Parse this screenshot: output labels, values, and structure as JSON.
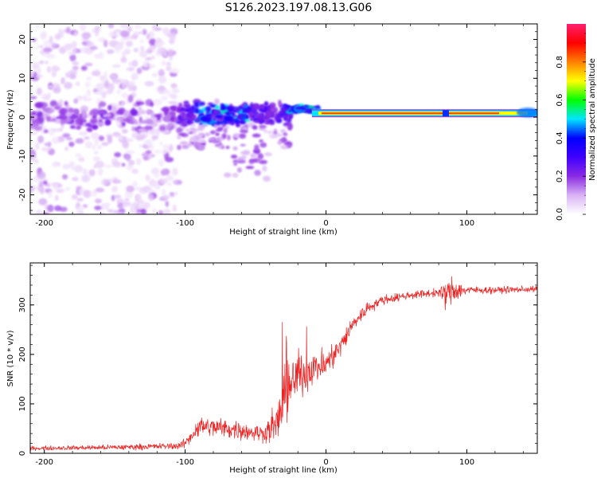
{
  "figure": {
    "title": "S126.2023.197.08.13.G06"
  },
  "chart_data": [
    {
      "type": "heatmap",
      "xlabel": "Height of straight line (km)",
      "ylabel": "Frequency (Hz)",
      "xlim": [
        -210,
        150
      ],
      "ylim": [
        -25,
        24
      ],
      "x_ticks": [
        "-200",
        "-100",
        "0",
        "100"
      ],
      "y_ticks": [
        "-20",
        "-10",
        "0",
        "10",
        "20"
      ],
      "colorbar": {
        "label": "Normalized spectral amplitude",
        "range": [
          0,
          1
        ],
        "ticks": [
          "0.0",
          "0.2",
          "0.4",
          "0.6",
          "0.8"
        ],
        "colormap": [
          "#ffffff",
          "#d9b3f5",
          "#8a2be2",
          "#3f00ff",
          "#0000ff",
          "#00e5ff",
          "#00ff00",
          "#ffff00",
          "#ff8000",
          "#ff0000",
          "#ff1f6e"
        ]
      },
      "features": {
        "scatter_noise_x_range": [
          -210,
          -105
        ],
        "scatter_noise_freq_range": [
          -25,
          24
        ],
        "noise_blob_x_range": [
          -105,
          -25
        ],
        "noise_blob_freq_range": [
          -18,
          8
        ],
        "carrier_track_x_range": [
          -10,
          150
        ],
        "carrier_track_freq_hz": 1,
        "carrier_track_amplitude": 0.85,
        "track_gap_x_km": 85
      },
      "grid": false
    },
    {
      "type": "line",
      "xlabel": "Height of straight line (km)",
      "ylabel": "SNR (10 * v/v)",
      "xlim": [
        -210,
        150
      ],
      "ylim": [
        0,
        385
      ],
      "x_ticks": [
        "-200",
        "-100",
        "0",
        "100"
      ],
      "y_ticks": [
        "0",
        "100",
        "200",
        "300"
      ],
      "series_color": "#ee2222",
      "envelope": {
        "x": [
          -210,
          -150,
          -105,
          -100,
          -90,
          -70,
          -45,
          -35,
          -30,
          -20,
          -10,
          0,
          10,
          20,
          30,
          40,
          60,
          80,
          85,
          90,
          95,
          100,
          120,
          150
        ],
        "mean": [
          10,
          12,
          15,
          20,
          55,
          50,
          40,
          60,
          110,
          160,
          170,
          180,
          215,
          265,
          295,
          310,
          320,
          325,
          320,
          330,
          330,
          330,
          330,
          332
        ],
        "spread": [
          6,
          8,
          10,
          14,
          30,
          30,
          25,
          60,
          80,
          70,
          55,
          45,
          35,
          25,
          18,
          14,
          12,
          12,
          40,
          45,
          25,
          12,
          10,
          10
        ]
      },
      "grid": false
    }
  ]
}
